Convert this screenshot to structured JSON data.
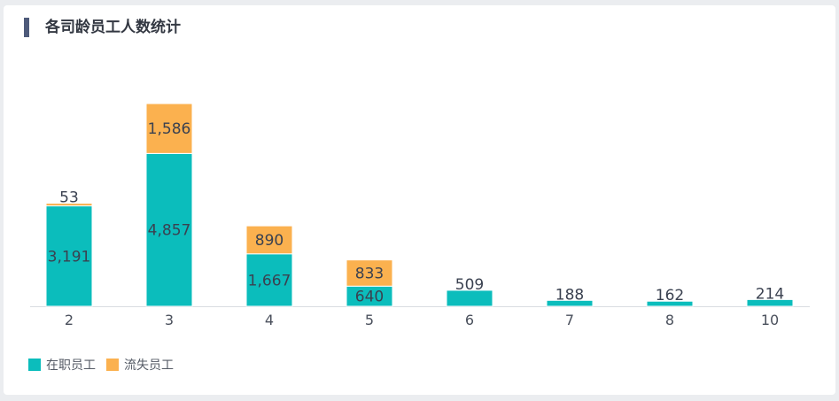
{
  "card": {
    "title": "各司龄员工人数统计"
  },
  "chart_data": {
    "type": "bar",
    "stacked": true,
    "title": "各司龄员工人数统计",
    "categories": [
      "2",
      "3",
      "4",
      "5",
      "6",
      "7",
      "8",
      "10"
    ],
    "series": [
      {
        "name": "在职员工",
        "color": "#0bbdbc",
        "values": [
          3191,
          4857,
          1667,
          640,
          509,
          188,
          162,
          214
        ]
      },
      {
        "name": "流失员工",
        "color": "#fbb14f",
        "values": [
          53,
          1586,
          890,
          833,
          0,
          0,
          0,
          0
        ]
      }
    ],
    "value_labels": [
      [
        "3,191",
        "4,857",
        "1,667",
        "640",
        "509",
        "188",
        "162",
        "214"
      ],
      [
        "53",
        "1,586",
        "890",
        "833",
        "",
        "",
        "",
        ""
      ]
    ],
    "ylim": [
      0,
      6443
    ],
    "grid": false,
    "legend_position": "bottom-left"
  }
}
